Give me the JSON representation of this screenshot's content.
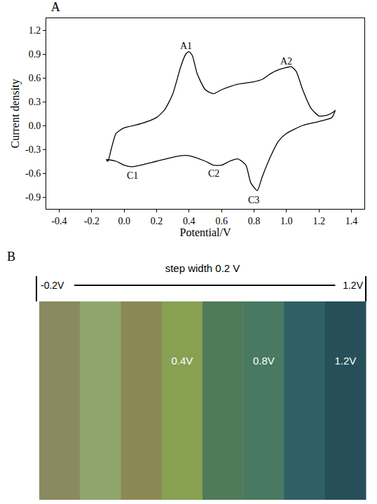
{
  "chart_data": {
    "type": "line",
    "title": "A",
    "x_label": "Potential/V",
    "y_label": "Current density",
    "x": [
      -0.1,
      -0.08,
      -0.05,
      0.0,
      0.1,
      0.2,
      0.25,
      0.3,
      0.35,
      0.38,
      0.4,
      0.42,
      0.45,
      0.5,
      0.55,
      0.6,
      0.7,
      0.8,
      0.85,
      0.9,
      0.95,
      1.0,
      1.03,
      1.06,
      1.1,
      1.15,
      1.2,
      1.25,
      1.29,
      1.3,
      1.28,
      1.2,
      1.1,
      1.0,
      0.95,
      0.9,
      0.85,
      0.82,
      0.78,
      0.75,
      0.7,
      0.65,
      0.6,
      0.55,
      0.5,
      0.4,
      0.35,
      0.3,
      0.2,
      0.1,
      0.05,
      0.0,
      -0.05,
      -0.1,
      -0.11,
      -0.1
    ],
    "values": [
      -0.45,
      -0.3,
      -0.1,
      -0.03,
      0.02,
      0.1,
      0.2,
      0.4,
      0.75,
      0.9,
      0.93,
      0.88,
      0.65,
      0.45,
      0.4,
      0.45,
      0.52,
      0.55,
      0.58,
      0.65,
      0.7,
      0.73,
      0.74,
      0.68,
      0.45,
      0.22,
      0.12,
      0.13,
      0.17,
      0.19,
      0.1,
      0.05,
      0.0,
      -0.1,
      -0.2,
      -0.4,
      -0.65,
      -0.82,
      -0.72,
      -0.5,
      -0.42,
      -0.45,
      -0.5,
      -0.5,
      -0.45,
      -0.38,
      -0.38,
      -0.4,
      -0.45,
      -0.5,
      -0.52,
      -0.5,
      -0.45,
      -0.43,
      -0.43,
      -0.45
    ],
    "color": "#000000",
    "xlim": [
      -0.48,
      1.48
    ],
    "xticks": [
      {
        "value": -0.4,
        "label": "-0.4"
      },
      {
        "value": -0.2,
        "label": "-0.2"
      },
      {
        "value": 0,
        "label": "0.0"
      },
      0.2,
      0.4,
      0.6,
      0.8,
      {
        "value": 1,
        "label": "1.0"
      },
      1.2,
      1.4
    ],
    "ylim": [
      -1.05,
      1.35
    ],
    "yticks": [
      -0.9,
      -0.6,
      -0.3,
      {
        "value": 0,
        "label": "0.0"
      },
      0.3,
      0.6,
      0.9,
      1.2
    ],
    "grid": false,
    "annotations": [
      {
        "text": "A1",
        "x": 0.38,
        "y": 1.0
      },
      {
        "text": "A2",
        "x": 1.0,
        "y": 0.81
      },
      {
        "text": "C1",
        "x": 0.05,
        "y": -0.63
      },
      {
        "text": "C2",
        "x": 0.55,
        "y": -0.6
      },
      {
        "text": "C3",
        "x": 0.8,
        "y": -0.94
      }
    ]
  },
  "panel_b": {
    "label": "B",
    "header": "step width 0.2 V",
    "start": "-0.2V",
    "end": "1.2V",
    "strips": [
      {
        "color": "#8a8a60",
        "label": null
      },
      {
        "color": "#8ea66c",
        "label": null
      },
      {
        "color": "#8a8956",
        "label": null
      },
      {
        "color": "#87a052",
        "label": "0.4V"
      },
      {
        "color": "#4f7b5a",
        "label": null
      },
      {
        "color": "#497961",
        "label": "0.8V"
      },
      {
        "color": "#2f6066",
        "label": null
      },
      {
        "color": "#264f59",
        "label": "1.2V"
      }
    ]
  }
}
